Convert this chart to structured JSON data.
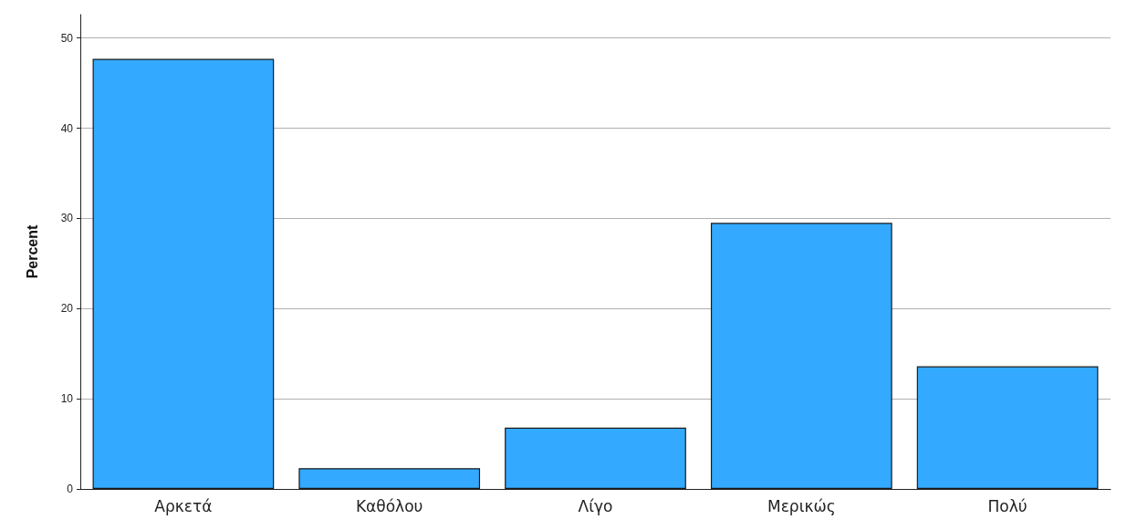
{
  "chart_data": {
    "type": "bar",
    "ylabel": "Percent",
    "categories": [
      "Αρκετά",
      "Καθόλου",
      "Λίγο",
      "Μερικώς",
      "Πολύ"
    ],
    "values": [
      47.7,
      2.3,
      6.8,
      29.5,
      13.6
    ],
    "color": "#33aaff",
    "ylim": [
      0,
      52.6
    ],
    "yticks": [
      0,
      10,
      20,
      30,
      40,
      50
    ],
    "grid": "y"
  }
}
